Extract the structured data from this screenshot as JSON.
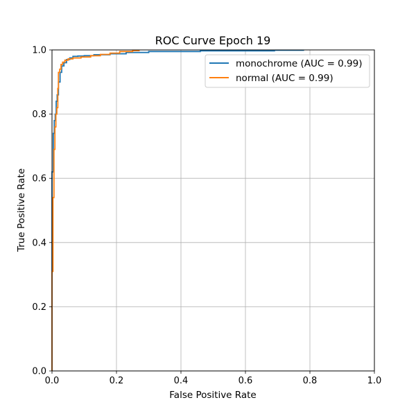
{
  "chart_data": {
    "type": "line",
    "title": "ROC Curve Epoch 19",
    "xlabel": "False Positive Rate",
    "ylabel": "True Positive Rate",
    "xlim": [
      0.0,
      1.0
    ],
    "ylim": [
      0.0,
      1.0
    ],
    "xticks": [
      "0.0",
      "0.2",
      "0.4",
      "0.6",
      "0.8",
      "1.0"
    ],
    "yticks": [
      "0.0",
      "0.2",
      "0.4",
      "0.6",
      "0.8",
      "1.0"
    ],
    "grid": true,
    "legend_position": "top-right",
    "series": [
      {
        "name": "monochrome (AUC = 0.99)",
        "color": "#1f77b4",
        "x": [
          0.0,
          0.0,
          0.004,
          0.004,
          0.007,
          0.007,
          0.01,
          0.01,
          0.013,
          0.013,
          0.016,
          0.016,
          0.02,
          0.02,
          0.025,
          0.025,
          0.03,
          0.03,
          0.037,
          0.037,
          0.045,
          0.045,
          0.055,
          0.055,
          0.065,
          0.065,
          0.08,
          0.08,
          0.1,
          0.1,
          0.13,
          0.13,
          0.18,
          0.18,
          0.23,
          0.23,
          0.3,
          0.3,
          0.46,
          0.46,
          0.69,
          0.69,
          0.78,
          0.78
        ],
        "y": [
          0.0,
          0.62,
          0.62,
          0.74,
          0.74,
          0.78,
          0.78,
          0.8,
          0.8,
          0.84,
          0.84,
          0.86,
          0.86,
          0.9,
          0.9,
          0.93,
          0.93,
          0.95,
          0.95,
          0.96,
          0.96,
          0.97,
          0.97,
          0.975,
          0.975,
          0.98,
          0.98,
          0.981,
          0.981,
          0.982,
          0.982,
          0.985,
          0.985,
          0.988,
          0.988,
          0.992,
          0.992,
          0.995,
          0.995,
          0.997,
          0.997,
          0.999,
          0.999,
          1.0
        ]
      },
      {
        "name": "normal (AUC = 0.99)",
        "color": "#ff7f0e",
        "x": [
          0.0,
          0.0,
          0.003,
          0.003,
          0.006,
          0.006,
          0.009,
          0.009,
          0.012,
          0.012,
          0.015,
          0.015,
          0.018,
          0.018,
          0.02,
          0.02,
          0.024,
          0.024,
          0.028,
          0.028,
          0.033,
          0.033,
          0.04,
          0.04,
          0.05,
          0.05,
          0.065,
          0.065,
          0.09,
          0.09,
          0.12,
          0.12,
          0.15,
          0.15,
          0.18,
          0.18,
          0.21,
          0.21,
          0.25,
          0.25,
          0.27,
          0.27
        ],
        "y": [
          0.0,
          0.31,
          0.31,
          0.54,
          0.54,
          0.69,
          0.69,
          0.76,
          0.76,
          0.8,
          0.8,
          0.82,
          0.82,
          0.88,
          0.88,
          0.93,
          0.93,
          0.94,
          0.94,
          0.955,
          0.955,
          0.962,
          0.962,
          0.968,
          0.968,
          0.972,
          0.972,
          0.975,
          0.975,
          0.978,
          0.978,
          0.982,
          0.982,
          0.986,
          0.986,
          0.99,
          0.99,
          0.995,
          0.995,
          0.998,
          0.998,
          1.0
        ]
      }
    ]
  }
}
